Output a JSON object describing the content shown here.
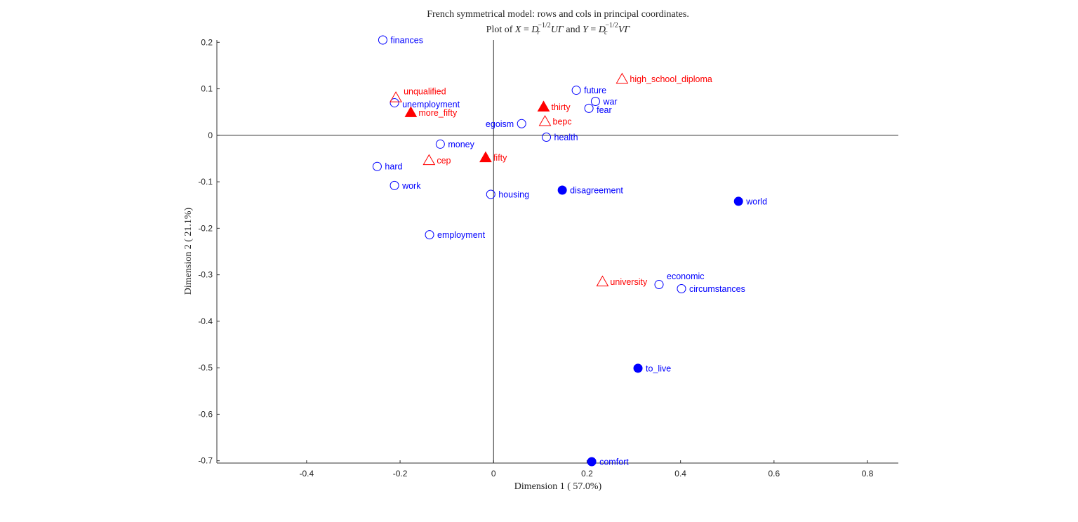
{
  "chart_data": {
    "type": "scatter",
    "title": "French symmetrical model: rows and cols in principal coordinates.",
    "subtitle_parts": [
      "Plot of ",
      "X",
      " = ",
      "D",
      "r",
      "−1/2",
      "UΓ",
      " and ",
      "Y",
      " = ",
      "D",
      "c",
      "−1/2",
      "VΓ"
    ],
    "xlabel": "Dimension  1 ( 57.0%)",
    "ylabel": "Dimension  2 ( 21.1%)",
    "xlim": [
      -0.592,
      0.866
    ],
    "ylim": [
      -0.705,
      0.205
    ],
    "xticks": [
      "-0.4",
      "-0.2",
      "0",
      "0.2",
      "0.4",
      "0.6",
      "0.8"
    ],
    "xtick_values": [
      -0.4,
      -0.2,
      0,
      0.2,
      0.4,
      0.6,
      0.8
    ],
    "yticks": [
      "0.2",
      "0.1",
      "0",
      "-0.1",
      "-0.2",
      "-0.3",
      "-0.4",
      "-0.5",
      "-0.6",
      "-0.7"
    ],
    "ytick_values": [
      0.2,
      0.1,
      0,
      -0.1,
      -0.2,
      -0.3,
      -0.4,
      -0.5,
      -0.6,
      -0.7
    ],
    "grid": false,
    "colors": {
      "blue": "#0000ff",
      "red": "#ff0000",
      "axis": "#333333"
    },
    "series": [
      {
        "marker": "open-circle",
        "color": "#0000ff",
        "points": [
          {
            "label": "finances",
            "x": -0.237,
            "y": 0.205
          },
          {
            "label": "unemployment",
            "x": -0.212,
            "y": 0.07
          },
          {
            "label": "future",
            "x": 0.177,
            "y": 0.097
          },
          {
            "label": "war",
            "x": 0.218,
            "y": 0.073
          },
          {
            "label": "fear",
            "x": 0.204,
            "y": 0.058
          },
          {
            "label": "egoism",
            "x": 0.06,
            "y": 0.025
          },
          {
            "label": "health",
            "x": 0.113,
            "y": -0.004
          },
          {
            "label": "money",
            "x": -0.114,
            "y": -0.019
          },
          {
            "label": "hard",
            "x": -0.249,
            "y": -0.067
          },
          {
            "label": "work",
            "x": -0.212,
            "y": -0.108
          },
          {
            "label": "housing",
            "x": -0.006,
            "y": -0.127
          },
          {
            "label": "employment",
            "x": -0.137,
            "y": -0.214
          },
          {
            "label": "economic",
            "x": 0.354,
            "y": -0.321
          },
          {
            "label": "circumstances",
            "x": 0.402,
            "y": -0.33
          }
        ]
      },
      {
        "marker": "filled-circle",
        "color": "#0000ff",
        "points": [
          {
            "label": "disagreement",
            "x": 0.147,
            "y": -0.118
          },
          {
            "label": "world",
            "x": 0.524,
            "y": -0.142
          },
          {
            "label": "to_live",
            "x": 0.309,
            "y": -0.501
          },
          {
            "label": "comfort",
            "x": 0.21,
            "y": -0.702
          }
        ]
      },
      {
        "marker": "open-triangle",
        "color": "#ff0000",
        "points": [
          {
            "label": "high_school_diploma",
            "x": 0.275,
            "y": 0.121
          },
          {
            "label": "unqualified",
            "x": -0.209,
            "y": 0.081
          },
          {
            "label": "bepc",
            "x": 0.11,
            "y": 0.03
          },
          {
            "label": "cep",
            "x": -0.138,
            "y": -0.054
          },
          {
            "label": "university",
            "x": 0.233,
            "y": -0.315
          }
        ]
      },
      {
        "marker": "filled-triangle",
        "color": "#ff0000",
        "points": [
          {
            "label": "thirty",
            "x": 0.107,
            "y": 0.061
          },
          {
            "label": "more_fifty",
            "x": -0.177,
            "y": 0.049
          },
          {
            "label": "fifty",
            "x": -0.017,
            "y": -0.048
          }
        ]
      }
    ]
  }
}
